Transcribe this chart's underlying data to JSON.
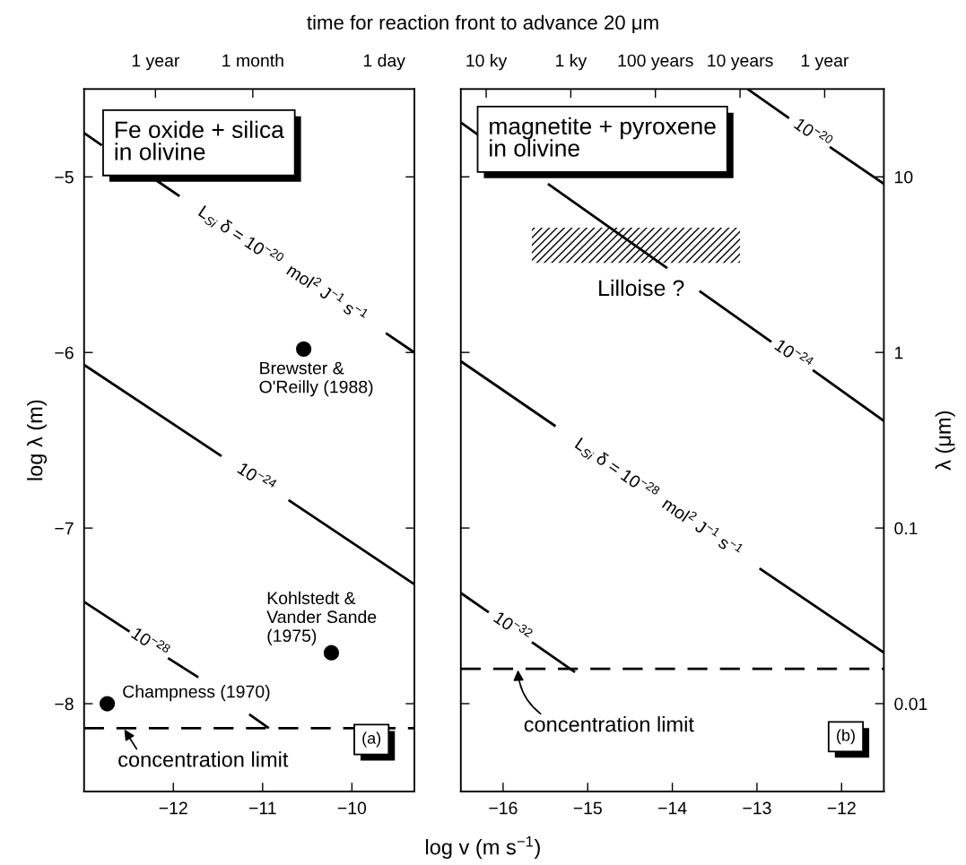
{
  "chart_data": [
    {
      "type": "line",
      "title": "time for reaction front to advance 20 μm",
      "xlabel": "log v (m s$^{−1}$)",
      "ylabel": "log λ (m)",
      "xlim": [
        -13,
        -9.3
      ],
      "xticks": [
        {
          "value": -12,
          "label": "−12"
        },
        {
          "value": -11,
          "label": "−11"
        },
        {
          "value": -10,
          "label": "−10"
        }
      ],
      "ylim": [
        -8.5,
        -4.5
      ],
      "yticks": [
        {
          "value": -5,
          "label": "−5"
        },
        {
          "value": -6,
          "label": "−6"
        },
        {
          "value": -7,
          "label": "−7"
        },
        {
          "value": -8,
          "label": "−8"
        }
      ],
      "series": [
        {
          "color": "#000000",
          "x": [
            -13,
            -12.8,
            -12.45,
            -12.19,
            -11.93,
            -10.8,
            -9.62,
            -9.3
          ],
          "values": [
            -4.75,
            -4.82,
            null,
            -5.02,
            -5.11,
            null,
            -5.89,
            -6.0
          ]
        },
        {
          "color": "#000000",
          "x": [
            -13,
            -11.46,
            -11.08,
            -10.71,
            -9.3
          ],
          "values": [
            -6.07,
            -6.59,
            null,
            -6.84,
            -7.32
          ]
        },
        {
          "color": "#000000",
          "x": [
            -13,
            -12.49,
            -12.27,
            -12.06,
            -11.72,
            -11.4,
            -11.15,
            -10.93
          ],
          "values": [
            -7.42,
            -7.59,
            null,
            -7.74,
            -7.85,
            null,
            -8.06,
            -8.14
          ]
        },
        {
          "type": "scatter",
          "color": "#000000",
          "marker": "circle",
          "x": [
            -12.74,
            -10.54,
            -10.23
          ],
          "values": [
            -8.0,
            -5.98,
            -7.71
          ]
        }
      ],
      "ref_lines": [
        {
          "axis": "y",
          "value": -8.14,
          "label": "concentration limit",
          "color": "#000000",
          "line_style": "dashed"
        }
      ],
      "annotations": [
        "Fe oxide + silica\nin olivine",
        "L$_{Si}$ δ = 10$^{−20}$  mol$^{2}$ J$^{−1}$ s$^{−1}$",
        "10$^{−24}$",
        "10$^{−28}$",
        {
          "text": "Brewster &\nO'Reilly (1988)",
          "x": -10.54,
          "y": -5.98
        },
        {
          "text": "Kohlstedt &\nVander Sande\n(1975)",
          "x": -10.23,
          "y": -7.71
        },
        {
          "text": "Champness (1970)",
          "x": -12.74,
          "y": -8.0
        },
        "(a)",
        "1 year",
        "1 month",
        "1 day"
      ]
    },
    {
      "type": "line",
      "ylabel": "λ (μm)",
      "xlim": [
        -16.5,
        -11.5
      ],
      "xticks": [
        {
          "value": -16,
          "label": "−16"
        },
        {
          "value": -15,
          "label": "−15"
        },
        {
          "value": -14,
          "label": "−14"
        },
        {
          "value": -13,
          "label": "−13"
        },
        {
          "value": -12,
          "label": "−12"
        }
      ],
      "log": "y",
      "ylim": [
        0.00316,
        31.6
      ],
      "yticks": [
        10,
        1,
        0.1,
        0.01
      ],
      "series": [
        {
          "color": "#000000",
          "x": [
            -13.11,
            -12.62,
            -12.35,
            -12.14,
            -11.5
          ],
          "values": [
            31.6,
            21.6,
            null,
            14.8,
            9.12
          ]
        },
        {
          "color": "#000000",
          "x": [
            -16.5,
            -16.3,
            -15.9,
            -15.47,
            -14.06,
            -13.87,
            -13.68,
            -12.83,
            -12.58,
            -12.34,
            -11.5
          ],
          "values": [
            20.4,
            17.4,
            null,
            9.12,
            3.02,
            null,
            2.24,
            1.15,
            null,
            0.794,
            0.407
          ]
        },
        {
          "color": "#000000",
          "x": [
            -16.5,
            -15.38,
            -14.17,
            -12.97,
            -11.5
          ],
          "values": [
            0.891,
            0.38,
            null,
            0.0589,
            0.0195
          ]
        },
        {
          "color": "#000000",
          "x": [
            -16.5,
            -16.17,
            -15.9,
            -15.66,
            -15.15
          ],
          "values": [
            0.0427,
            0.0331,
            null,
            0.0224,
            0.0151
          ]
        },
        {
          "type": "area",
          "color": "#000000",
          "x": [
            -15.66,
            -15.66,
            -13.2,
            -13.2
          ],
          "values": [
            3.24,
            5.13,
            5.13,
            3.24
          ]
        }
      ],
      "ref_lines": [
        {
          "axis": "y",
          "value": 0.0158,
          "label": "concentration limit",
          "color": "#000000",
          "line_style": "dashed"
        }
      ],
      "annotations": [
        "magnetite + pyroxene\nin olivine",
        "10$^{−20}$",
        "Lilloise ?",
        "10$^{−24}$",
        "L$_{Si}$ δ = 10$^{−28}$  mol$^{2}$ J$^{−1}$ s$^{−1}$",
        "10$^{−32}$",
        "(b)",
        "10 ky",
        "1 ky",
        "100 years",
        "10 years",
        "1 year"
      ]
    }
  ]
}
